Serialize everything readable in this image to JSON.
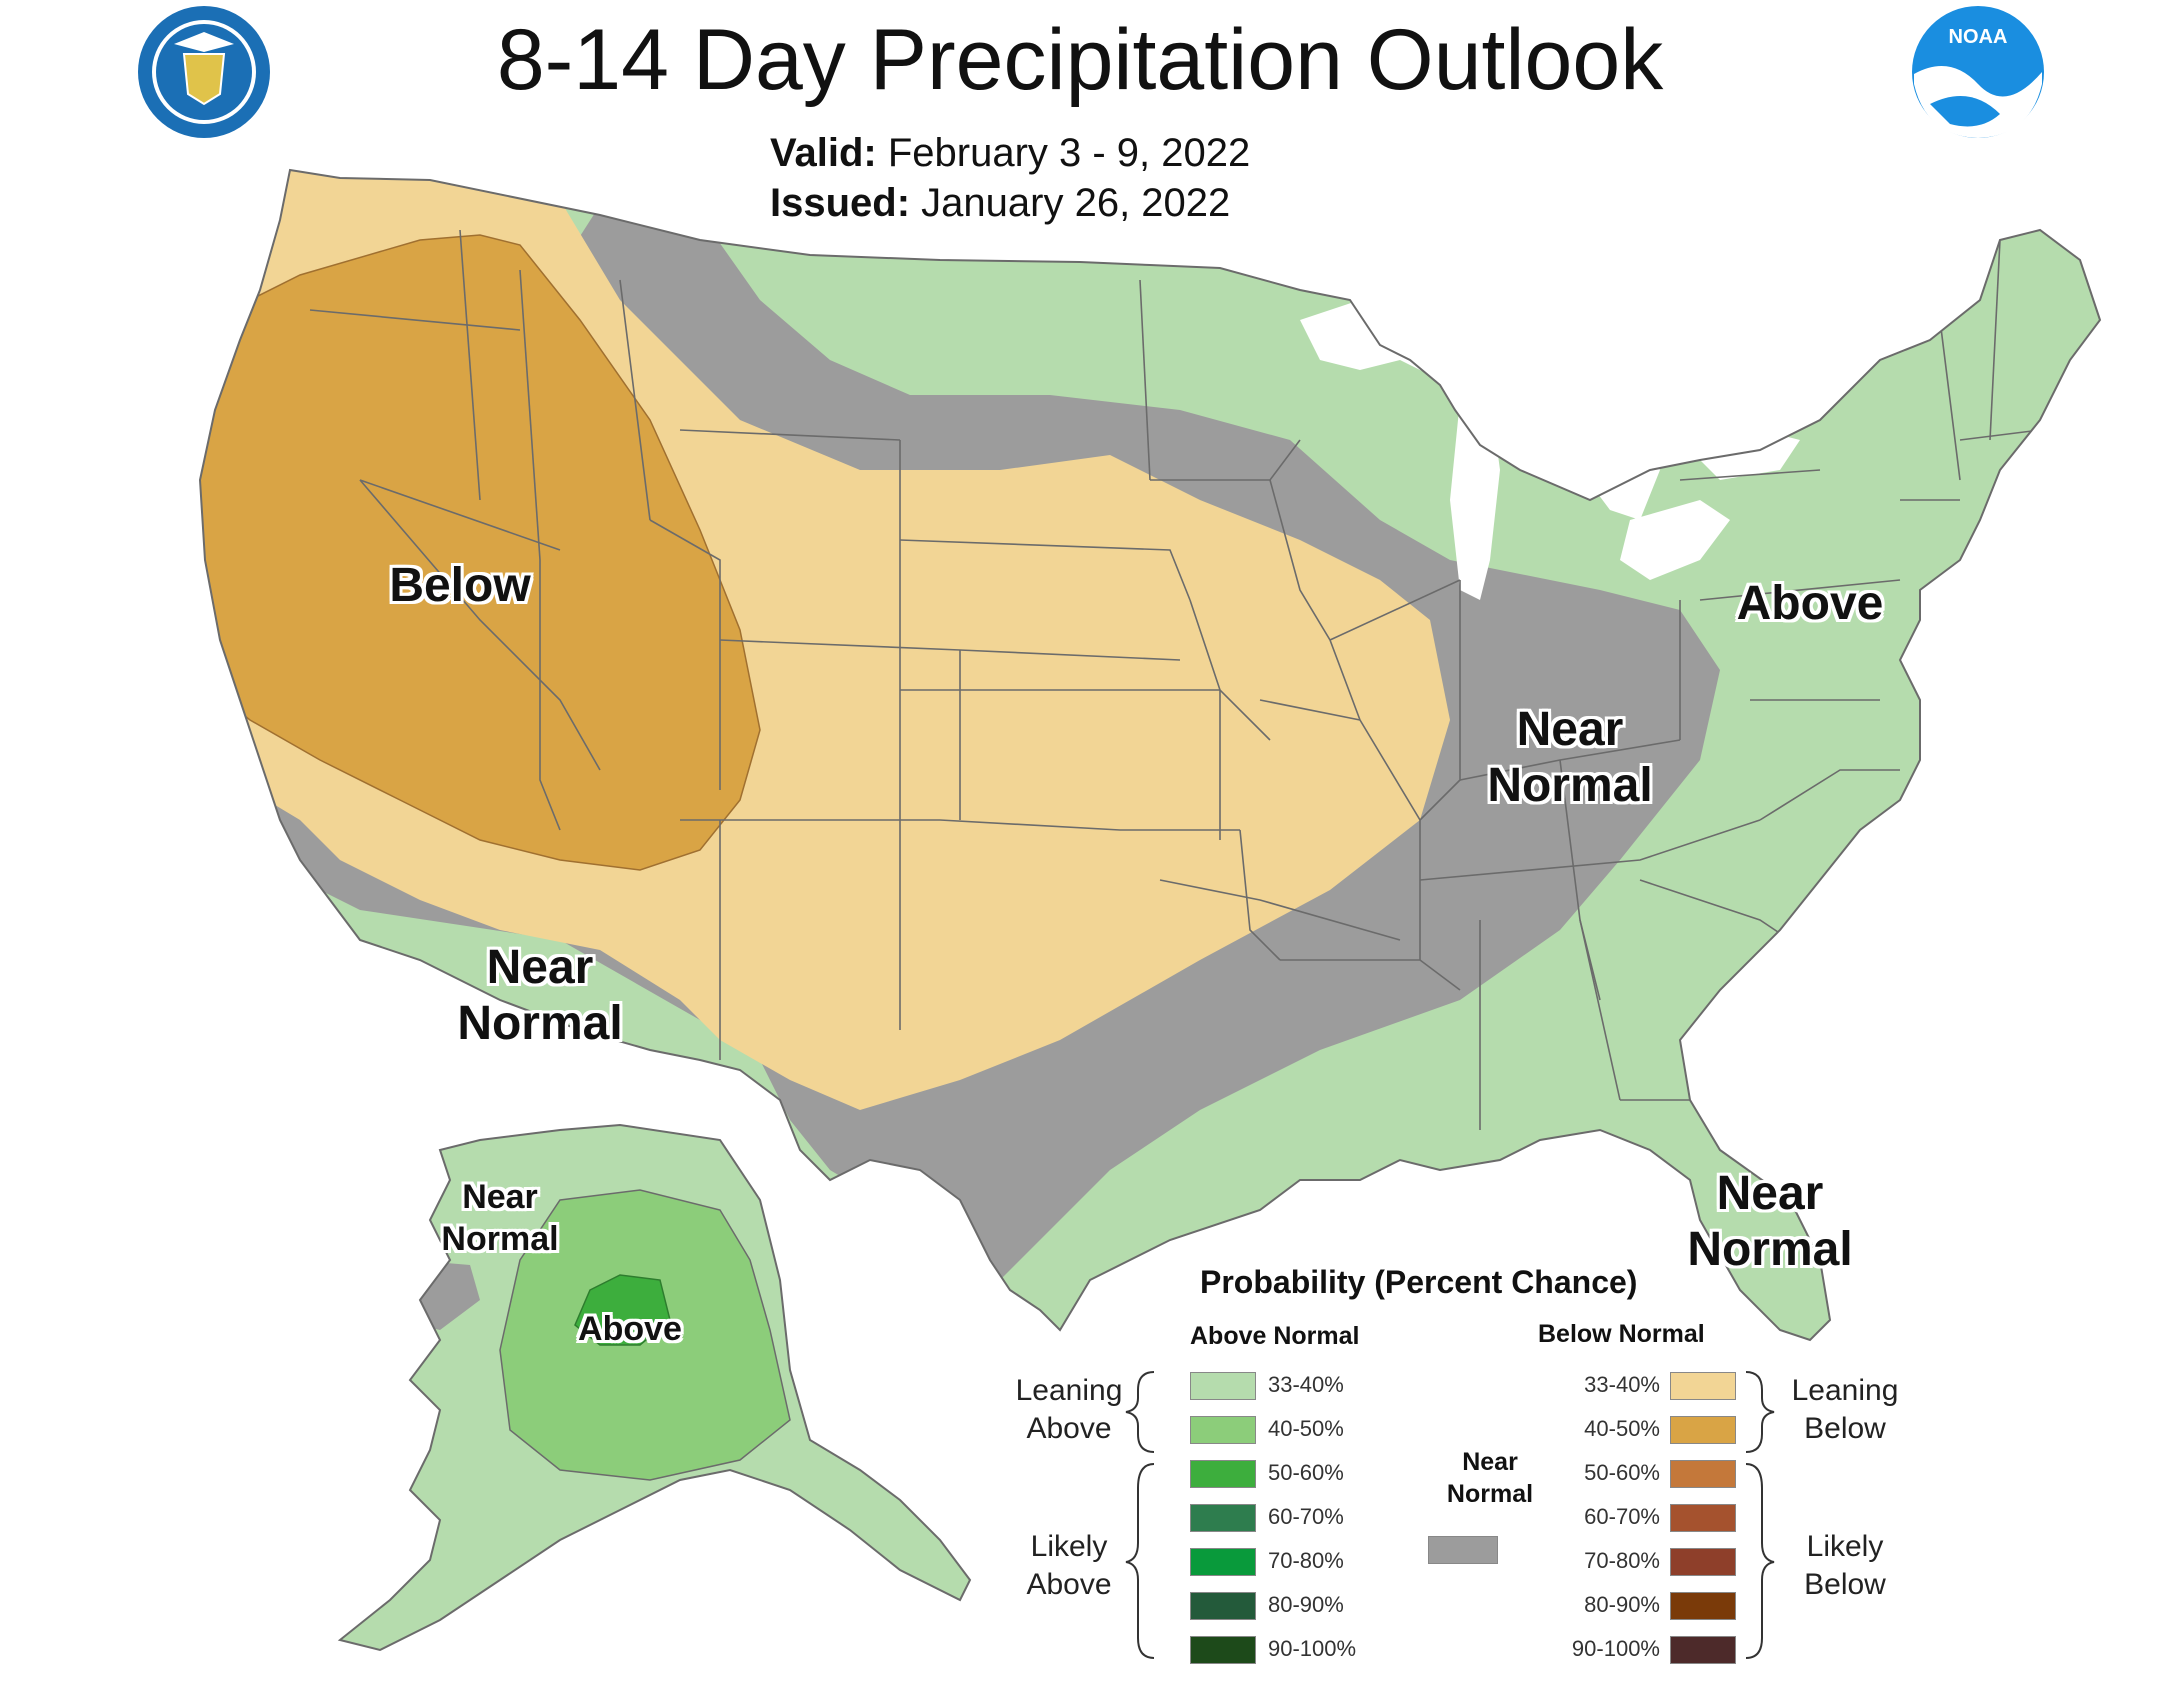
{
  "header": {
    "title": "8-14 Day Precipitation Outlook",
    "valid_label": "Valid:",
    "valid_value": "February 3 - 9, 2022",
    "issued_label": "Issued:",
    "issued_value": "January 26, 2022"
  },
  "logos": {
    "commerce": "seal-icon",
    "noaa": "noaa-logo-icon",
    "noaa_text": "NOAA"
  },
  "colors": {
    "lean_above": "#b5dcad",
    "above_40_50": "#8ccd7a",
    "above_50_60": "#3dae3d",
    "above_60_70": "#2e7d4e",
    "above_70_80": "#099a3b",
    "above_80_90": "#235a3a",
    "above_90_100": "#1d4a1a",
    "near_normal": "#9c9c9c",
    "lean_below": "#f2d595",
    "below_40_50": "#d9a445",
    "below_50_60": "#c4783a",
    "below_60_70": "#a5522e",
    "below_70_80": "#8e3f2a",
    "below_80_90": "#7a3a09",
    "below_90_100": "#4d2a2a",
    "outline": "#6b6b6b"
  },
  "map_labels": {
    "west_below": "Below",
    "southwest_near": [
      "Near",
      "Normal"
    ],
    "central_near": [
      "Near",
      "Normal"
    ],
    "east_above": "Above",
    "florida_near": [
      "Near",
      "Normal"
    ],
    "alaska_near": [
      "Near",
      "Normal"
    ],
    "alaska_above": "Above"
  },
  "legend": {
    "title": "Probability (Percent Chance)",
    "above_header": "Above Normal",
    "below_header": "Below Normal",
    "leaning_above": [
      "Leaning",
      "Above"
    ],
    "likely_above": [
      "Likely",
      "Above"
    ],
    "leaning_below": [
      "Leaning",
      "Below"
    ],
    "likely_below": [
      "Likely",
      "Below"
    ],
    "near_normal": [
      "Near",
      "Normal"
    ],
    "ranges_above": [
      "33-40%",
      "40-50%",
      "50-60%",
      "60-70%",
      "70-80%",
      "80-90%",
      "90-100%"
    ],
    "ranges_below": [
      "33-40%",
      "40-50%",
      "50-60%",
      "60-70%",
      "70-80%",
      "80-90%",
      "90-100%"
    ]
  }
}
